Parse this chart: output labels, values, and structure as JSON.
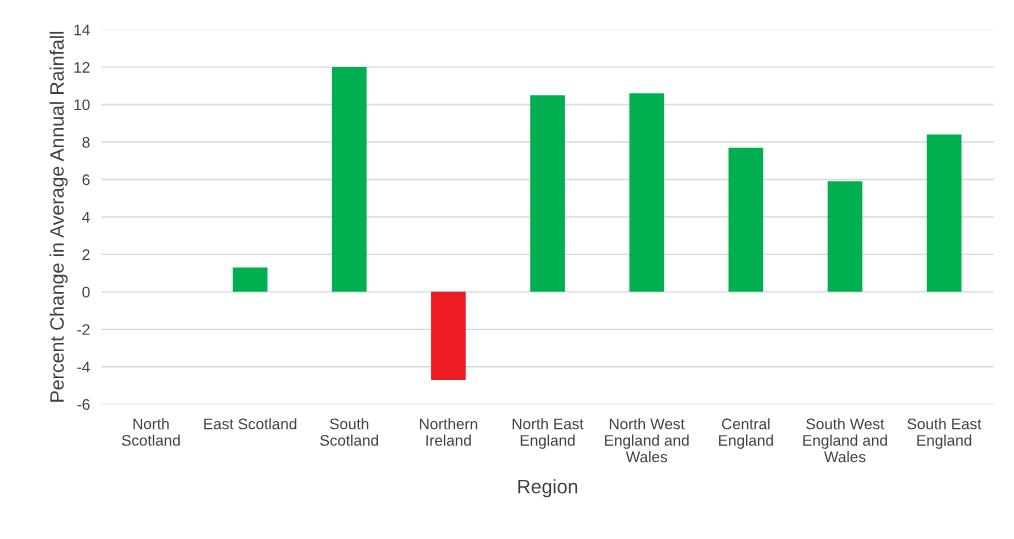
{
  "chart_data": {
    "type": "bar",
    "xlabel": "Region",
    "ylabel": "Percent Change in Average Annual Rainfall",
    "categories": [
      "North\nScotland",
      "East Scotland",
      "South\nScotland",
      "Northern\nIreland",
      "North East\nEngland",
      "North West\nEngland and\nWales",
      "Central\nEngland",
      "South West\nEngland and\nWales",
      "South East\nEngland"
    ],
    "values": [
      0,
      1.3,
      12.0,
      -4.7,
      10.5,
      10.6,
      7.7,
      5.9,
      8.4
    ],
    "colors": [
      "#00b050",
      "#00b050",
      "#00b050",
      "#ed1c24",
      "#00b050",
      "#00b050",
      "#00b050",
      "#00b050",
      "#00b050"
    ],
    "ylim": [
      -6,
      14
    ],
    "yticks": [
      -6,
      -4,
      -2,
      0,
      2,
      4,
      6,
      8,
      10,
      12,
      14
    ],
    "grid": "y"
  }
}
